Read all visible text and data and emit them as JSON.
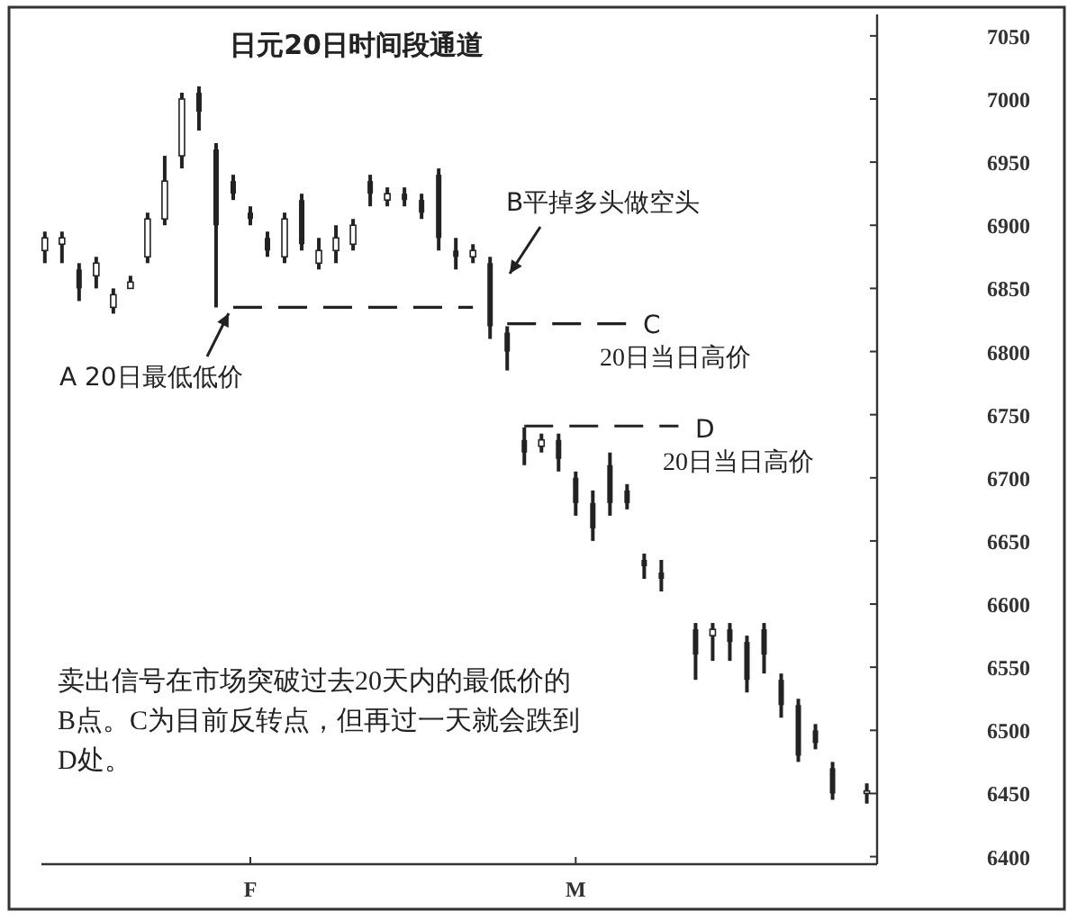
{
  "chart_data": {
    "type": "candlestick",
    "title": "日元20日时间段通道",
    "categories": [
      null,
      null,
      null,
      null,
      null,
      null,
      null,
      null,
      null,
      null,
      null,
      null,
      "F",
      null,
      null,
      null,
      null,
      null,
      null,
      null,
      null,
      null,
      null,
      null,
      null,
      null,
      null,
      null,
      null,
      null,
      null,
      "M",
      null,
      null,
      null,
      null,
      null,
      null,
      null,
      null,
      null,
      null,
      null,
      null,
      null,
      null,
      null,
      null,
      null
    ],
    "ohlc": [
      [
        6880,
        6895,
        6870,
        6890
      ],
      [
        6885,
        6895,
        6870,
        6890
      ],
      [
        6865,
        6870,
        6840,
        6850
      ],
      [
        6860,
        6875,
        6850,
        6870
      ],
      [
        6835,
        6850,
        6830,
        6845
      ],
      [
        6850,
        6860,
        6850,
        6855
      ],
      [
        6875,
        6910,
        6870,
        6905
      ],
      [
        6905,
        6955,
        6900,
        6935
      ],
      [
        6955,
        7005,
        6945,
        7000
      ],
      [
        7005,
        7010,
        6975,
        6990
      ],
      [
        6960,
        6965,
        6835,
        6900
      ],
      [
        6935,
        6940,
        6920,
        6925
      ],
      [
        6910,
        6915,
        6900,
        6905
      ],
      [
        6890,
        6895,
        6875,
        6880
      ],
      [
        6875,
        6910,
        6870,
        6905
      ],
      [
        6920,
        6925,
        6880,
        6885
      ],
      [
        6870,
        6890,
        6865,
        6880
      ],
      [
        6880,
        6900,
        6870,
        6890
      ],
      [
        6885,
        6905,
        6880,
        6900
      ],
      [
        6935,
        6940,
        6915,
        6925
      ],
      [
        6920,
        6930,
        6915,
        6925
      ],
      [
        6925,
        6930,
        6915,
        6920
      ],
      [
        6920,
        6925,
        6905,
        6910
      ],
      [
        6940,
        6945,
        6880,
        6890
      ],
      [
        6880,
        6890,
        6865,
        6875
      ],
      [
        6875,
        6885,
        6870,
        6880
      ],
      [
        6870,
        6875,
        6810,
        6820
      ],
      [
        6815,
        6820,
        6785,
        6800
      ],
      [
        6730,
        6740,
        6710,
        6720
      ],
      [
        6725,
        6735,
        6720,
        6730
      ],
      [
        6730,
        6735,
        6705,
        6715
      ],
      [
        6700,
        6705,
        6670,
        6680
      ],
      [
        6680,
        6690,
        6650,
        6660
      ],
      [
        6710,
        6720,
        6670,
        6680
      ],
      [
        6690,
        6695,
        6675,
        6680
      ],
      [
        6635,
        6640,
        6620,
        6630
      ],
      [
        6625,
        6635,
        6610,
        6620
      ],
      null,
      [
        6580,
        6585,
        6540,
        6560
      ],
      [
        6575,
        6585,
        6555,
        6580
      ],
      [
        6580,
        6585,
        6555,
        6570
      ],
      [
        6570,
        6575,
        6530,
        6540
      ],
      [
        6580,
        6585,
        6545,
        6560
      ],
      [
        6540,
        6545,
        6510,
        6520
      ],
      [
        6520,
        6525,
        6475,
        6480
      ],
      [
        6500,
        6505,
        6485,
        6490
      ],
      [
        6470,
        6475,
        6445,
        6450
      ],
      null,
      [
        6450,
        6458,
        6442,
        6452
      ]
    ],
    "color": "#222222",
    "series": [
      {
        "type": "line",
        "values": [
          null,
          null,
          null,
          null,
          null,
          null,
          null,
          null,
          null,
          null,
          null,
          6835,
          6835,
          6835,
          6835,
          6835,
          6835,
          6835,
          6835,
          6835,
          6835,
          6835,
          6835,
          6835,
          6835,
          6835,
          null,
          null,
          null,
          null,
          null,
          null,
          null,
          null,
          null,
          null,
          null,
          null,
          null,
          null,
          null,
          null,
          null,
          null,
          null,
          null,
          null,
          null,
          null
        ],
        "line_style": "dashed",
        "color": "#222222"
      },
      {
        "type": "line",
        "values": [
          null,
          null,
          null,
          null,
          null,
          null,
          null,
          null,
          null,
          null,
          null,
          null,
          null,
          null,
          null,
          null,
          null,
          null,
          null,
          null,
          null,
          null,
          null,
          null,
          null,
          null,
          null,
          6822,
          6822,
          6822,
          6822,
          6822,
          6822,
          6822,
          6822,
          null,
          null,
          null,
          null,
          null,
          null,
          null,
          null,
          null,
          null,
          null,
          null,
          null,
          null
        ],
        "line_style": "dashed",
        "color": "#222222"
      },
      {
        "type": "line",
        "values": [
          null,
          null,
          null,
          null,
          null,
          null,
          null,
          null,
          null,
          null,
          null,
          null,
          null,
          null,
          null,
          null,
          null,
          null,
          null,
          null,
          null,
          null,
          null,
          null,
          null,
          null,
          null,
          null,
          6741,
          6741,
          6741,
          6741,
          6741,
          6741,
          6741,
          6741,
          6741,
          6741,
          null,
          null,
          null,
          null,
          null,
          null,
          null,
          null,
          null,
          null,
          null
        ],
        "line_style": "dashed",
        "color": "#222222"
      }
    ],
    "ylim": [
      6394,
      7067
    ],
    "yticks": [
      6400,
      6450,
      6500,
      6550,
      6600,
      6650,
      6700,
      6750,
      6800,
      6850,
      6900,
      6950,
      7000,
      7050
    ],
    "grid": false,
    "annotations": [
      "A 20日最低低价",
      "B平掉多头做空头",
      "C",
      "20日当日高价",
      "D",
      "20日当日高价",
      "卖出信号在市场突破过去20天内的最低价的B点。C为目前反转点，但再过一天就会跌到D处。"
    ]
  }
}
